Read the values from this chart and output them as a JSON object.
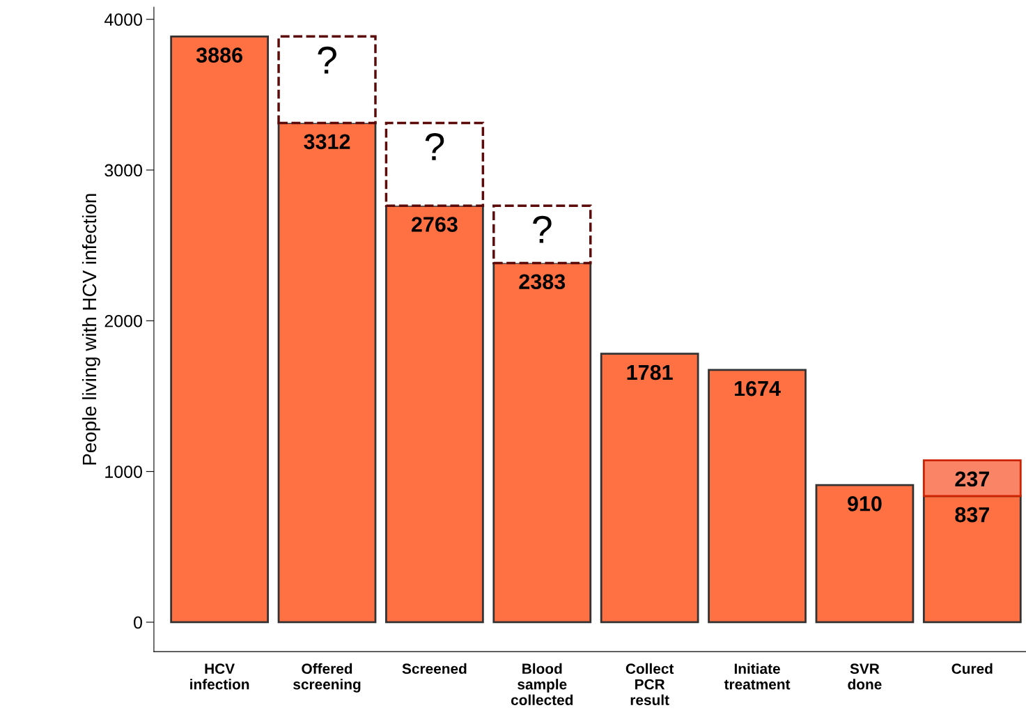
{
  "chart_data": {
    "type": "bar",
    "stacked": true,
    "ylabel": "People living with HCV infection",
    "categories": [
      "HCV\ninfection",
      "Offered\nscreening",
      "Screened",
      "Blood\nsample\ncollected",
      "Collect\nPCR\nresult",
      "Initiate\ntreatment",
      "SVR\ndone",
      "Cured"
    ],
    "series": [
      {
        "color": "#ff7043",
        "values": [
          3886,
          3312,
          2763,
          2383,
          1781,
          1674,
          910,
          837
        ],
        "value_labels": [
          "3886",
          "3312",
          "2763",
          "2383",
          "1781",
          "1674",
          "910",
          "837"
        ]
      },
      {
        "color": "#5c0a0a",
        "line_style": "dashed",
        "values": [
          null,
          574,
          549,
          380,
          null,
          null,
          null,
          null
        ],
        "value_labels": [
          null,
          "?",
          "?",
          "?",
          null,
          null,
          null,
          null
        ]
      },
      {
        "color": "#fa8466",
        "values": [
          null,
          null,
          null,
          null,
          null,
          null,
          null,
          237
        ],
        "value_labels": [
          null,
          null,
          null,
          null,
          null,
          null,
          null,
          "237"
        ]
      }
    ],
    "ylim": [
      -195,
      4080
    ],
    "yticks": [
      0,
      1000,
      2000,
      3000,
      4000
    ],
    "grid": false,
    "legend": false
  }
}
